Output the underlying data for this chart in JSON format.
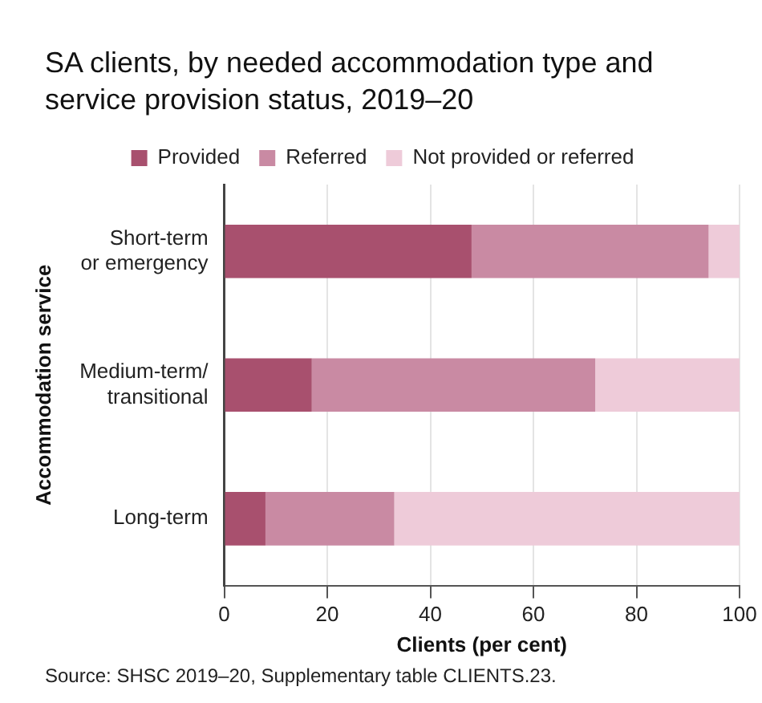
{
  "chart_data": {
    "type": "bar",
    "orientation": "horizontal",
    "stacked": true,
    "title": "SA clients, by needed accommodation type and service provision status, 2019–20",
    "xlabel": "Clients (per cent)",
    "ylabel": "Accommodation service",
    "categories": [
      "Short-term\nor emergency",
      "Medium-term/\ntransitional",
      "Long-term"
    ],
    "series": [
      {
        "name": "Provided",
        "color": "#a8506e",
        "values": [
          48,
          17,
          8
        ]
      },
      {
        "name": "Referred",
        "color": "#c98aa3",
        "values": [
          46,
          55,
          25
        ]
      },
      {
        "name": "Not provided or referred",
        "color": "#eecbd9",
        "values": [
          6,
          28,
          67
        ]
      }
    ],
    "xlim": [
      0,
      100
    ],
    "xticks": [
      0,
      20,
      40,
      60,
      80,
      100
    ],
    "grid": "x",
    "legend": "top",
    "annotations": [
      "Source: SHSC 2019–20, Supplementary table CLIENTS.23."
    ]
  }
}
